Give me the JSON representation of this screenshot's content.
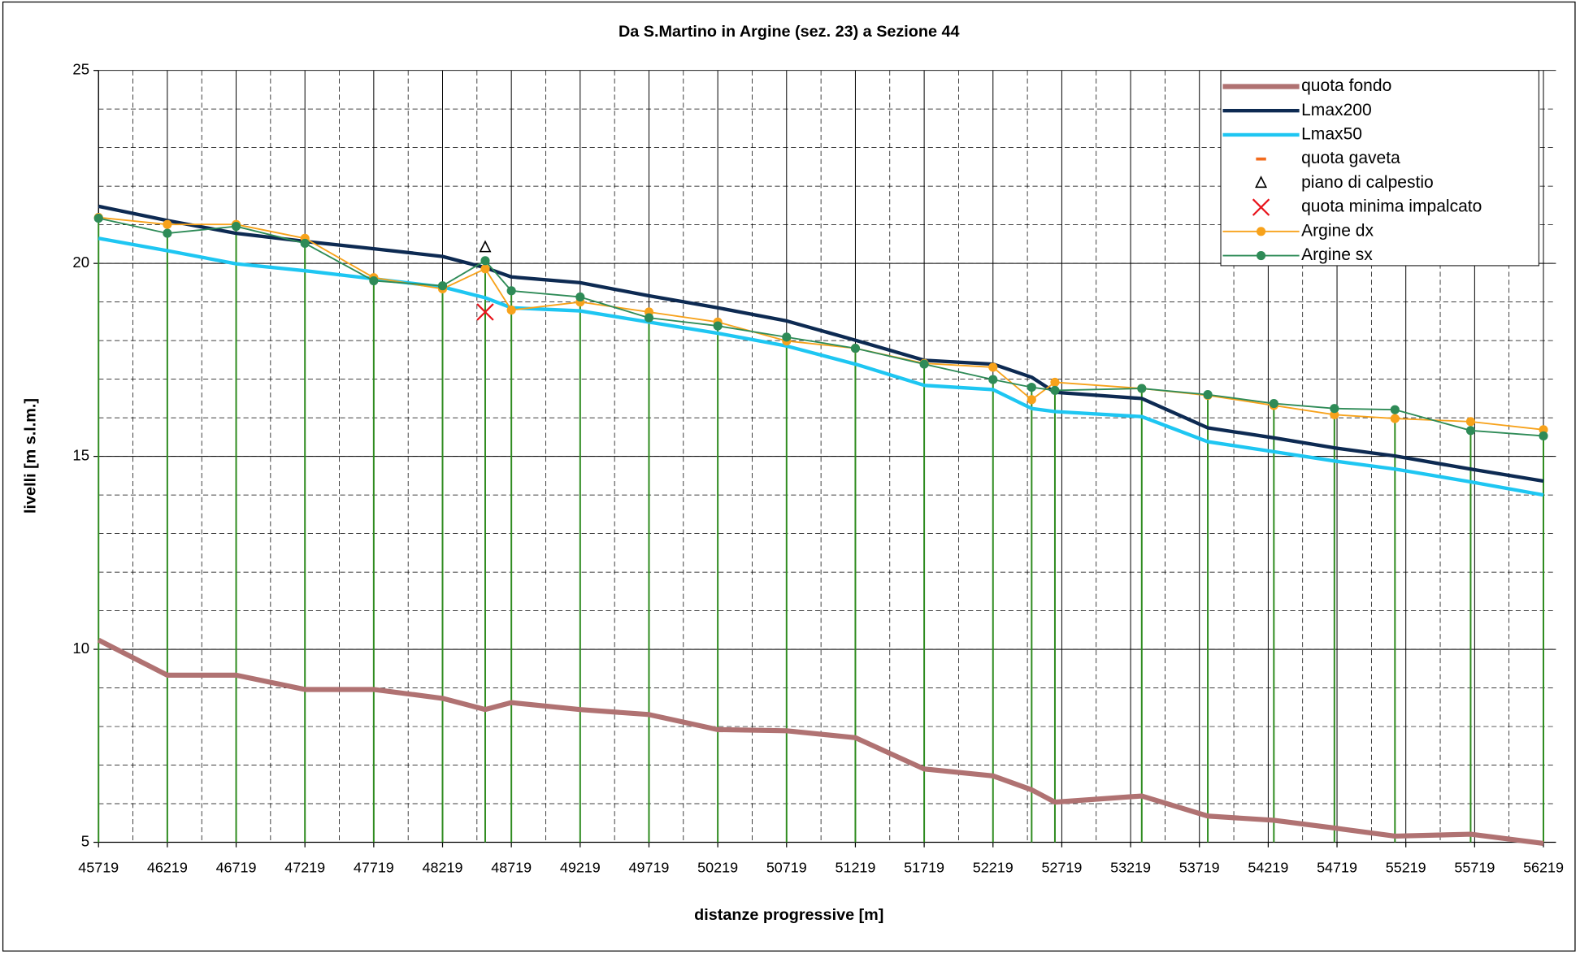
{
  "chart_data": {
    "type": "line",
    "title": "Da S.Martino in Argine  (sez. 23) a  Sezione 44",
    "xlabel": "distanze progressive [m]",
    "ylabel": "livelli [m s.l.m.]",
    "x": [
      45719,
      46219,
      46719,
      47219,
      47719,
      48219,
      48529,
      48719,
      49219,
      49719,
      50219,
      50719,
      51219,
      51719,
      52219,
      52500,
      52669,
      53300,
      53780,
      54260,
      54700,
      55140,
      55690,
      56219
    ],
    "xlim": [
      45719,
      56310
    ],
    "xticks": [
      45719,
      46219,
      46719,
      47219,
      47719,
      48219,
      48719,
      49219,
      49719,
      50219,
      50719,
      51219,
      51719,
      52219,
      52719,
      53219,
      53719,
      54219,
      54719,
      55219,
      55719,
      56219
    ],
    "ylim": [
      5,
      25
    ],
    "yticks": [
      5,
      10,
      15,
      20,
      25
    ],
    "grid": true,
    "legend": "upper right",
    "drop_lines": {
      "color": "#2e8b1f",
      "series": 7
    },
    "series": [
      {
        "name": "quota fondo",
        "color": "#b07272",
        "style": "line",
        "width": 5,
        "values": [
          10.24,
          9.33,
          9.33,
          8.96,
          8.96,
          8.73,
          8.44,
          8.62,
          8.44,
          8.31,
          7.92,
          7.89,
          7.71,
          6.9,
          6.72,
          6.36,
          6.04,
          6.2,
          5.68,
          5.57,
          5.37,
          5.16,
          5.21,
          4.97
        ]
      },
      {
        "name": "Lmax200",
        "color": "#0d2a52",
        "style": "line",
        "width": 3.5,
        "values": [
          21.48,
          21.11,
          20.78,
          20.57,
          20.38,
          20.18,
          19.89,
          19.65,
          19.5,
          19.16,
          18.85,
          18.51,
          18.01,
          17.49,
          17.39,
          17.05,
          16.66,
          16.5,
          15.74,
          15.48,
          15.22,
          15.01,
          14.67,
          14.36
        ]
      },
      {
        "name": "Lmax50",
        "color": "#1ec6f2",
        "style": "line",
        "width": 3.5,
        "values": [
          20.65,
          20.33,
          19.99,
          19.81,
          19.6,
          19.39,
          19.11,
          18.85,
          18.77,
          18.48,
          18.19,
          17.86,
          17.39,
          16.84,
          16.73,
          16.24,
          16.16,
          16.03,
          15.38,
          15.12,
          14.88,
          14.67,
          14.34,
          14.0
        ]
      },
      {
        "name": "quota gaveta",
        "color": "#f26b1d",
        "style": "dash",
        "values": [
          null,
          null,
          null,
          null,
          null,
          null,
          null,
          null,
          null,
          null,
          null,
          null,
          null,
          null,
          null,
          null,
          null,
          null,
          null,
          null,
          null,
          null,
          null,
          null
        ]
      },
      {
        "name": "piano di calpestio",
        "color": "#000000",
        "style": "triangle",
        "values": [
          null,
          null,
          null,
          null,
          null,
          null,
          20.41,
          null,
          null,
          null,
          null,
          null,
          null,
          null,
          null,
          null,
          null,
          null,
          null,
          null,
          null,
          null,
          null,
          null
        ]
      },
      {
        "name": "quota minima impalcato",
        "color": "#e8141c",
        "style": "cross",
        "values": [
          null,
          null,
          null,
          null,
          null,
          null,
          18.74,
          null,
          null,
          null,
          null,
          null,
          null,
          null,
          null,
          null,
          null,
          null,
          null,
          null,
          null,
          null,
          null,
          null
        ]
      },
      {
        "name": "Argine dx",
        "color": "#f7a21b",
        "style": "line-circle",
        "width": 1.5,
        "values": [
          21.19,
          21.01,
          21.01,
          20.65,
          19.63,
          19.34,
          19.86,
          18.79,
          19.0,
          18.74,
          18.48,
          17.99,
          17.8,
          17.41,
          17.31,
          16.47,
          16.92,
          16.76,
          16.58,
          16.32,
          16.08,
          15.98,
          15.9,
          15.69
        ]
      },
      {
        "name": "Argine sx",
        "color": "#2e8b57",
        "style": "line-circle",
        "width": 1.5,
        "values": [
          21.17,
          20.78,
          20.96,
          20.52,
          19.55,
          19.42,
          20.07,
          19.29,
          19.13,
          18.59,
          18.38,
          18.09,
          17.8,
          17.39,
          16.99,
          16.79,
          16.71,
          16.76,
          16.6,
          16.37,
          16.24,
          16.21,
          15.67,
          15.53
        ]
      }
    ]
  }
}
